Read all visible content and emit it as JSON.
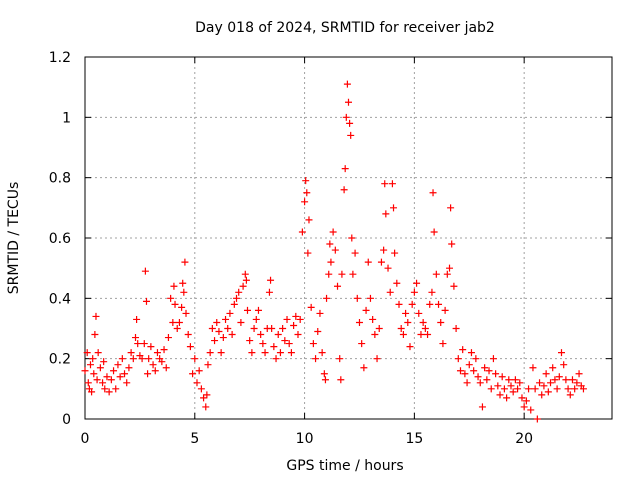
{
  "chart_data": {
    "type": "scatter",
    "title": "Day 018 of 2024, SRMTID for receiver jab2",
    "xlabel": "GPS time / hours",
    "ylabel": "SRMTID / TECUs",
    "xlim": [
      0,
      24
    ],
    "ylim": [
      0,
      1.2
    ],
    "xticks": [
      0,
      5,
      10,
      15,
      20
    ],
    "xtick_labels": [
      "0",
      "5",
      "10",
      "15",
      "20"
    ],
    "yticks": [
      0,
      0.2,
      0.4,
      0.6,
      0.8,
      1.0,
      1.2
    ],
    "ytick_labels": [
      "0",
      "0.2",
      "0.4",
      "0.6",
      "0.8",
      "1",
      "1.2"
    ],
    "grid": true,
    "marker": "+",
    "series": [
      {
        "name": "SRMTID",
        "color": "#ff0000",
        "points": [
          [
            0.0,
            0.16
          ],
          [
            0.1,
            0.22
          ],
          [
            0.15,
            0.12
          ],
          [
            0.2,
            0.1
          ],
          [
            0.25,
            0.18
          ],
          [
            0.3,
            0.09
          ],
          [
            0.35,
            0.2
          ],
          [
            0.4,
            0.15
          ],
          [
            0.45,
            0.28
          ],
          [
            0.5,
            0.34
          ],
          [
            0.55,
            0.13
          ],
          [
            0.6,
            0.22
          ],
          [
            0.7,
            0.17
          ],
          [
            0.8,
            0.12
          ],
          [
            0.85,
            0.19
          ],
          [
            0.9,
            0.1
          ],
          [
            1.0,
            0.14
          ],
          [
            1.1,
            0.09
          ],
          [
            1.2,
            0.13
          ],
          [
            1.3,
            0.16
          ],
          [
            1.4,
            0.1
          ],
          [
            1.5,
            0.18
          ],
          [
            1.6,
            0.14
          ],
          [
            1.7,
            0.2
          ],
          [
            1.8,
            0.15
          ],
          [
            1.9,
            0.12
          ],
          [
            2.0,
            0.17
          ],
          [
            2.1,
            0.22
          ],
          [
            2.2,
            0.2
          ],
          [
            2.3,
            0.27
          ],
          [
            2.35,
            0.33
          ],
          [
            2.4,
            0.25
          ],
          [
            2.5,
            0.21
          ],
          [
            2.6,
            0.2
          ],
          [
            2.7,
            0.25
          ],
          [
            2.75,
            0.49
          ],
          [
            2.8,
            0.39
          ],
          [
            2.85,
            0.15
          ],
          [
            2.9,
            0.2
          ],
          [
            3.0,
            0.24
          ],
          [
            3.1,
            0.18
          ],
          [
            3.2,
            0.16
          ],
          [
            3.3,
            0.22
          ],
          [
            3.4,
            0.2
          ],
          [
            3.5,
            0.19
          ],
          [
            3.6,
            0.23
          ],
          [
            3.7,
            0.17
          ],
          [
            3.8,
            0.27
          ],
          [
            3.9,
            0.4
          ],
          [
            4.0,
            0.32
          ],
          [
            4.05,
            0.44
          ],
          [
            4.1,
            0.38
          ],
          [
            4.2,
            0.3
          ],
          [
            4.3,
            0.32
          ],
          [
            4.4,
            0.37
          ],
          [
            4.45,
            0.45
          ],
          [
            4.5,
            0.42
          ],
          [
            4.55,
            0.52
          ],
          [
            4.6,
            0.35
          ],
          [
            4.7,
            0.28
          ],
          [
            4.8,
            0.24
          ],
          [
            4.9,
            0.15
          ],
          [
            5.0,
            0.2
          ],
          [
            5.1,
            0.12
          ],
          [
            5.2,
            0.16
          ],
          [
            5.3,
            0.1
          ],
          [
            5.4,
            0.07
          ],
          [
            5.5,
            0.04
          ],
          [
            5.55,
            0.08
          ],
          [
            5.6,
            0.18
          ],
          [
            5.7,
            0.22
          ],
          [
            5.8,
            0.3
          ],
          [
            5.9,
            0.26
          ],
          [
            6.0,
            0.32
          ],
          [
            6.1,
            0.29
          ],
          [
            6.2,
            0.22
          ],
          [
            6.3,
            0.27
          ],
          [
            6.4,
            0.33
          ],
          [
            6.5,
            0.3
          ],
          [
            6.6,
            0.35
          ],
          [
            6.7,
            0.28
          ],
          [
            6.8,
            0.38
          ],
          [
            6.9,
            0.4
          ],
          [
            7.0,
            0.42
          ],
          [
            7.1,
            0.32
          ],
          [
            7.2,
            0.44
          ],
          [
            7.3,
            0.48
          ],
          [
            7.35,
            0.46
          ],
          [
            7.4,
            0.36
          ],
          [
            7.5,
            0.26
          ],
          [
            7.6,
            0.22
          ],
          [
            7.7,
            0.3
          ],
          [
            7.8,
            0.33
          ],
          [
            7.9,
            0.36
          ],
          [
            8.0,
            0.28
          ],
          [
            8.1,
            0.25
          ],
          [
            8.2,
            0.22
          ],
          [
            8.3,
            0.3
          ],
          [
            8.4,
            0.42
          ],
          [
            8.45,
            0.46
          ],
          [
            8.5,
            0.3
          ],
          [
            8.6,
            0.24
          ],
          [
            8.7,
            0.2
          ],
          [
            8.8,
            0.28
          ],
          [
            8.9,
            0.22
          ],
          [
            9.0,
            0.3
          ],
          [
            9.1,
            0.26
          ],
          [
            9.2,
            0.33
          ],
          [
            9.3,
            0.25
          ],
          [
            9.4,
            0.22
          ],
          [
            9.5,
            0.31
          ],
          [
            9.6,
            0.34
          ],
          [
            9.7,
            0.28
          ],
          [
            9.8,
            0.33
          ],
          [
            9.9,
            0.62
          ],
          [
            10.0,
            0.72
          ],
          [
            10.05,
            0.79
          ],
          [
            10.1,
            0.75
          ],
          [
            10.15,
            0.55
          ],
          [
            10.2,
            0.66
          ],
          [
            10.3,
            0.37
          ],
          [
            10.4,
            0.25
          ],
          [
            10.5,
            0.2
          ],
          [
            10.6,
            0.29
          ],
          [
            10.7,
            0.35
          ],
          [
            10.8,
            0.22
          ],
          [
            10.9,
            0.15
          ],
          [
            10.95,
            0.13
          ],
          [
            11.0,
            0.4
          ],
          [
            11.1,
            0.48
          ],
          [
            11.15,
            0.58
          ],
          [
            11.2,
            0.52
          ],
          [
            11.3,
            0.62
          ],
          [
            11.4,
            0.56
          ],
          [
            11.5,
            0.44
          ],
          [
            11.6,
            0.2
          ],
          [
            11.65,
            0.13
          ],
          [
            11.7,
            0.48
          ],
          [
            11.8,
            0.76
          ],
          [
            11.85,
            0.83
          ],
          [
            11.9,
            1.0
          ],
          [
            11.95,
            1.11
          ],
          [
            12.0,
            1.05
          ],
          [
            12.05,
            0.98
          ],
          [
            12.1,
            0.94
          ],
          [
            12.15,
            0.6
          ],
          [
            12.2,
            0.48
          ],
          [
            12.3,
            0.55
          ],
          [
            12.4,
            0.4
          ],
          [
            12.5,
            0.32
          ],
          [
            12.6,
            0.25
          ],
          [
            12.7,
            0.17
          ],
          [
            12.8,
            0.36
          ],
          [
            12.9,
            0.52
          ],
          [
            13.0,
            0.4
          ],
          [
            13.1,
            0.33
          ],
          [
            13.2,
            0.28
          ],
          [
            13.3,
            0.2
          ],
          [
            13.4,
            0.3
          ],
          [
            13.5,
            0.52
          ],
          [
            13.6,
            0.56
          ],
          [
            13.65,
            0.78
          ],
          [
            13.7,
            0.68
          ],
          [
            13.8,
            0.5
          ],
          [
            13.9,
            0.42
          ],
          [
            14.0,
            0.78
          ],
          [
            14.05,
            0.7
          ],
          [
            14.1,
            0.55
          ],
          [
            14.2,
            0.45
          ],
          [
            14.3,
            0.38
          ],
          [
            14.4,
            0.3
          ],
          [
            14.5,
            0.28
          ],
          [
            14.6,
            0.35
          ],
          [
            14.7,
            0.32
          ],
          [
            14.8,
            0.24
          ],
          [
            14.9,
            0.38
          ],
          [
            15.0,
            0.42
          ],
          [
            15.1,
            0.45
          ],
          [
            15.2,
            0.35
          ],
          [
            15.3,
            0.28
          ],
          [
            15.4,
            0.32
          ],
          [
            15.5,
            0.3
          ],
          [
            15.6,
            0.28
          ],
          [
            15.7,
            0.38
          ],
          [
            15.8,
            0.42
          ],
          [
            15.85,
            0.75
          ],
          [
            15.9,
            0.62
          ],
          [
            16.0,
            0.48
          ],
          [
            16.1,
            0.38
          ],
          [
            16.2,
            0.32
          ],
          [
            16.3,
            0.25
          ],
          [
            16.4,
            0.36
          ],
          [
            16.5,
            0.48
          ],
          [
            16.6,
            0.5
          ],
          [
            16.65,
            0.7
          ],
          [
            16.7,
            0.58
          ],
          [
            16.8,
            0.44
          ],
          [
            16.9,
            0.3
          ],
          [
            17.0,
            0.2
          ],
          [
            17.1,
            0.16
          ],
          [
            17.2,
            0.23
          ],
          [
            17.3,
            0.15
          ],
          [
            17.4,
            0.12
          ],
          [
            17.5,
            0.18
          ],
          [
            17.6,
            0.22
          ],
          [
            17.7,
            0.16
          ],
          [
            17.8,
            0.2
          ],
          [
            17.9,
            0.14
          ],
          [
            18.0,
            0.12
          ],
          [
            18.1,
            0.04
          ],
          [
            18.2,
            0.17
          ],
          [
            18.3,
            0.13
          ],
          [
            18.4,
            0.16
          ],
          [
            18.5,
            0.1
          ],
          [
            18.6,
            0.2
          ],
          [
            18.7,
            0.15
          ],
          [
            18.8,
            0.11
          ],
          [
            18.9,
            0.08
          ],
          [
            19.0,
            0.14
          ],
          [
            19.1,
            0.1
          ],
          [
            19.2,
            0.07
          ],
          [
            19.3,
            0.13
          ],
          [
            19.4,
            0.11
          ],
          [
            19.5,
            0.09
          ],
          [
            19.6,
            0.13
          ],
          [
            19.7,
            0.1
          ],
          [
            19.8,
            0.12
          ],
          [
            19.9,
            0.07
          ],
          [
            20.0,
            0.04
          ],
          [
            20.1,
            0.06
          ],
          [
            20.2,
            0.1
          ],
          [
            20.3,
            0.03
          ],
          [
            20.4,
            0.17
          ],
          [
            20.5,
            0.1
          ],
          [
            20.6,
            0.0
          ],
          [
            20.7,
            0.12
          ],
          [
            20.8,
            0.08
          ],
          [
            20.9,
            0.11
          ],
          [
            21.0,
            0.15
          ],
          [
            21.1,
            0.09
          ],
          [
            21.2,
            0.12
          ],
          [
            21.3,
            0.17
          ],
          [
            21.4,
            0.13
          ],
          [
            21.5,
            0.1
          ],
          [
            21.6,
            0.14
          ],
          [
            21.7,
            0.22
          ],
          [
            21.8,
            0.18
          ],
          [
            21.9,
            0.13
          ],
          [
            22.0,
            0.1
          ],
          [
            22.1,
            0.08
          ],
          [
            22.2,
            0.13
          ],
          [
            22.3,
            0.1
          ],
          [
            22.4,
            0.12
          ],
          [
            22.5,
            0.15
          ],
          [
            22.6,
            0.11
          ],
          [
            22.7,
            0.1
          ]
        ]
      }
    ]
  }
}
